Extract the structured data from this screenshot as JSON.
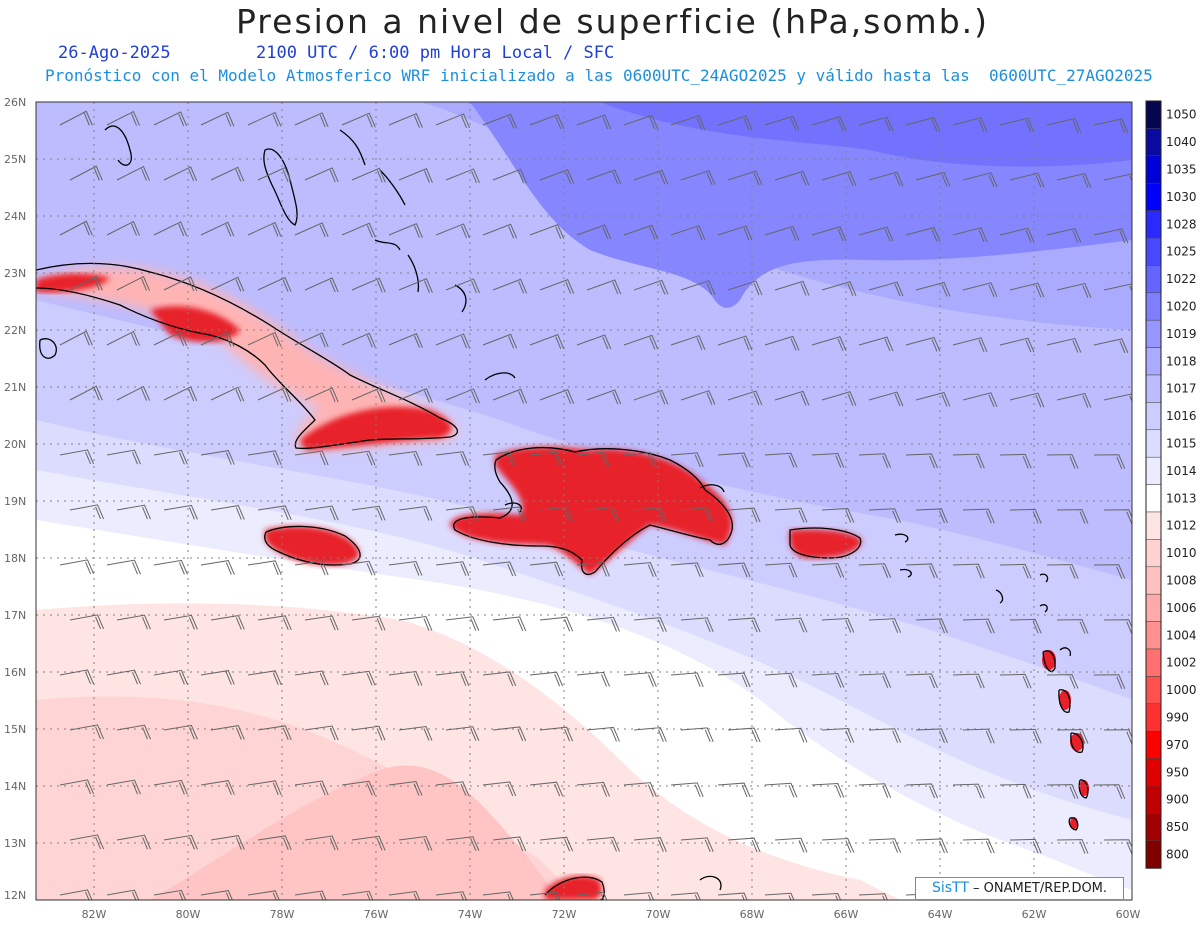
{
  "header": {
    "title": "Presion a nivel de superficie (hPa,somb.)",
    "date": "26-Ago-2025",
    "time_info": "2100 UTC / 6:00 pm Hora Local / SFC",
    "model_info": "Pronóstico con el Modelo Atmosferico WRF inicializado a las 0600UTC_24AGO2025 y válido hasta las  0600UTC_27AGO2025"
  },
  "credit": {
    "brand": "SisTT",
    "text": "– ONAMET/REP.DOM."
  },
  "axes": {
    "lat_labels": [
      "26N",
      "25N",
      "24N",
      "23N",
      "22N",
      "21N",
      "20N",
      "19N",
      "18N",
      "17N",
      "16N",
      "15N",
      "14N",
      "13N",
      "12N"
    ],
    "lon_labels": [
      "82W",
      "80W",
      "78W",
      "76W",
      "74W",
      "72W",
      "70W",
      "68W",
      "66W",
      "64W",
      "62W",
      "60W"
    ]
  },
  "colorbar": {
    "levels": [
      "1050",
      "1040",
      "1035",
      "1030",
      "1028",
      "1025",
      "1022",
      "1020",
      "1019",
      "1018",
      "1017",
      "1016",
      "1015",
      "1014",
      "1013",
      "1012",
      "1010",
      "1008",
      "1006",
      "1004",
      "1002",
      "1000",
      "990",
      "970",
      "950",
      "900",
      "850",
      "800"
    ],
    "colors": [
      "#050550",
      "#0a0aa0",
      "#0000d8",
      "#0000ff",
      "#2a2aff",
      "#4848ff",
      "#6464ff",
      "#7e7eff",
      "#9696ff",
      "#aaaaff",
      "#bcbcff",
      "#ccccff",
      "#dcdcff",
      "#ececff",
      "#ffffff",
      "#ffe4e4",
      "#ffd2d2",
      "#ffc0c0",
      "#ffaaaa",
      "#ff9090",
      "#ff7070",
      "#ff5050",
      "#ff3030",
      "#ff0000",
      "#e00000",
      "#c00000",
      "#a00000",
      "#800000"
    ]
  },
  "colors": {
    "land_red": "#e8202a",
    "land_light": "#ffb4b4",
    "coast": "#000000",
    "grid": "#808080",
    "wind": "#666666"
  }
}
